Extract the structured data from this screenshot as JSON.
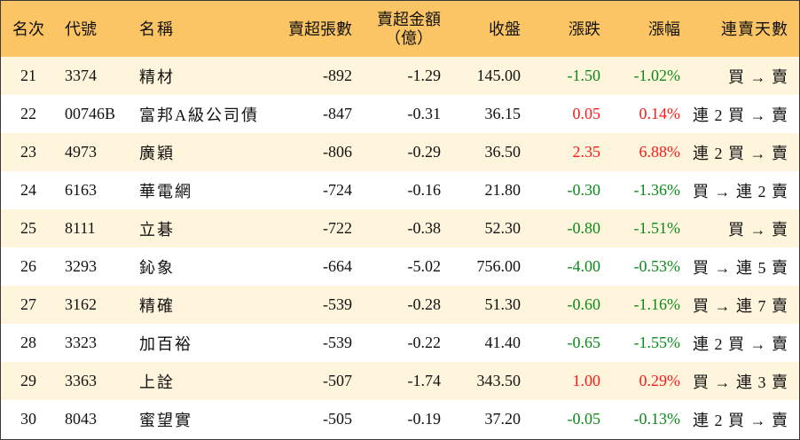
{
  "header": {
    "rank": "名次",
    "code": "代號",
    "name": "名稱",
    "net_sell_lots": "賣超張數",
    "net_sell_amount_line1": "賣超金額",
    "net_sell_amount_line2": "（億）",
    "close": "收盤",
    "change": "漲跌",
    "change_pct": "漲幅",
    "consecutive_days": "連賣天數"
  },
  "colors": {
    "header_bg": "#fbc565",
    "row_alt_bg": "#fff5dc",
    "up": "#ff1a1a",
    "down": "#0a8a1a"
  },
  "rows": [
    {
      "rank": "21",
      "code": "3374",
      "name": "精材",
      "lots": "-892",
      "amount": "-1.29",
      "close": "145.00",
      "change": "-1.50",
      "pct": "-1.02%",
      "days": "買 → 賣",
      "dir": "down"
    },
    {
      "rank": "22",
      "code": "00746B",
      "name": "富邦A級公司債",
      "lots": "-847",
      "amount": "-0.31",
      "close": "36.15",
      "change": "0.05",
      "pct": "0.14%",
      "days": "連 2 買 → 賣",
      "dir": "up"
    },
    {
      "rank": "23",
      "code": "4973",
      "name": "廣穎",
      "lots": "-806",
      "amount": "-0.29",
      "close": "36.50",
      "change": "2.35",
      "pct": "6.88%",
      "days": "連 2 買 → 賣",
      "dir": "up"
    },
    {
      "rank": "24",
      "code": "6163",
      "name": "華電網",
      "lots": "-724",
      "amount": "-0.16",
      "close": "21.80",
      "change": "-0.30",
      "pct": "-1.36%",
      "days": "買 → 連 2 賣",
      "dir": "down"
    },
    {
      "rank": "25",
      "code": "8111",
      "name": "立碁",
      "lots": "-722",
      "amount": "-0.38",
      "close": "52.30",
      "change": "-0.80",
      "pct": "-1.51%",
      "days": "買 → 賣",
      "dir": "down"
    },
    {
      "rank": "26",
      "code": "3293",
      "name": "鈊象",
      "lots": "-664",
      "amount": "-5.02",
      "close": "756.00",
      "change": "-4.00",
      "pct": "-0.53%",
      "days": "買 → 連 5 賣",
      "dir": "down"
    },
    {
      "rank": "27",
      "code": "3162",
      "name": "精確",
      "lots": "-539",
      "amount": "-0.28",
      "close": "51.30",
      "change": "-0.60",
      "pct": "-1.16%",
      "days": "買 → 連 7 賣",
      "dir": "down"
    },
    {
      "rank": "28",
      "code": "3323",
      "name": "加百裕",
      "lots": "-539",
      "amount": "-0.22",
      "close": "41.40",
      "change": "-0.65",
      "pct": "-1.55%",
      "days": "連 2 買 → 賣",
      "dir": "down"
    },
    {
      "rank": "29",
      "code": "3363",
      "name": "上詮",
      "lots": "-507",
      "amount": "-1.74",
      "close": "343.50",
      "change": "1.00",
      "pct": "0.29%",
      "days": "買 → 連 3 賣",
      "dir": "up"
    },
    {
      "rank": "30",
      "code": "8043",
      "name": "蜜望實",
      "lots": "-505",
      "amount": "-0.19",
      "close": "37.20",
      "change": "-0.05",
      "pct": "-0.13%",
      "days": "連 2 買 → 賣",
      "dir": "down"
    }
  ]
}
